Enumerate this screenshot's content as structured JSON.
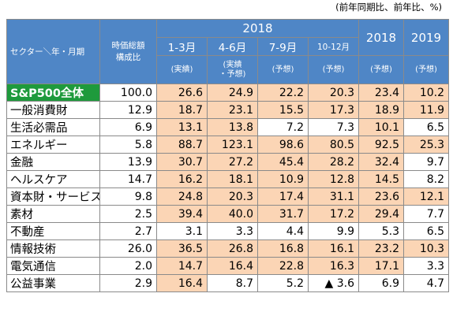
{
  "note": "(前年同期比、前年比、%)",
  "header": {
    "sector_label": "セクター＼年・月期",
    "comp_label_1": "時価総額",
    "comp_label_2": "構成比",
    "year_2018": "2018",
    "quarters": [
      {
        "label": "1-3月",
        "sub": "(実績)"
      },
      {
        "label": "4-6月",
        "sub": "(実績\n・予想)"
      },
      {
        "label": "7-9月",
        "sub": "(予想)"
      },
      {
        "label": "10-12月",
        "sub": "(予想)"
      }
    ],
    "annual": [
      {
        "label": "2018",
        "sub": "(予想)"
      },
      {
        "label": "2019",
        "sub": "(予想)"
      }
    ]
  },
  "rows": [
    {
      "name": "S&P500全体",
      "comp": "100.0",
      "v": [
        "26.6",
        "24.9",
        "22.2",
        "20.3",
        "23.4",
        "10.2"
      ],
      "hl": [
        1,
        1,
        1,
        1,
        1,
        1
      ]
    },
    {
      "name": "一般消費財",
      "comp": "12.9",
      "v": [
        "18.7",
        "23.1",
        "15.5",
        "17.3",
        "18.9",
        "11.9"
      ],
      "hl": [
        1,
        1,
        1,
        1,
        1,
        1
      ]
    },
    {
      "name": "生活必需品",
      "comp": "6.9",
      "v": [
        "13.1",
        "13.8",
        "7.2",
        "7.3",
        "10.1",
        "6.5"
      ],
      "hl": [
        1,
        1,
        0,
        0,
        1,
        0
      ]
    },
    {
      "name": "エネルギー",
      "comp": "5.8",
      "v": [
        "88.7",
        "123.1",
        "98.6",
        "80.5",
        "92.5",
        "25.3"
      ],
      "hl": [
        1,
        1,
        1,
        1,
        1,
        1
      ]
    },
    {
      "name": "金融",
      "comp": "13.9",
      "v": [
        "30.7",
        "27.2",
        "45.4",
        "28.2",
        "32.4",
        "9.7"
      ],
      "hl": [
        1,
        1,
        1,
        1,
        1,
        0
      ]
    },
    {
      "name": "ヘルスケア",
      "comp": "14.7",
      "v": [
        "16.2",
        "18.1",
        "10.9",
        "12.8",
        "14.5",
        "8.2"
      ],
      "hl": [
        1,
        1,
        1,
        1,
        1,
        0
      ]
    },
    {
      "name": "資本財・サービス",
      "comp": "9.8",
      "v": [
        "24.8",
        "20.3",
        "17.4",
        "31.1",
        "23.6",
        "12.1"
      ],
      "hl": [
        1,
        1,
        1,
        1,
        1,
        1
      ]
    },
    {
      "name": "素材",
      "comp": "2.5",
      "v": [
        "39.4",
        "40.0",
        "31.7",
        "17.2",
        "29.4",
        "7.7"
      ],
      "hl": [
        1,
        1,
        1,
        1,
        1,
        0
      ]
    },
    {
      "name": "不動産",
      "comp": "2.7",
      "v": [
        "3.1",
        "3.3",
        "4.4",
        "9.9",
        "5.3",
        "6.5"
      ],
      "hl": [
        0,
        0,
        0,
        0,
        0,
        0
      ]
    },
    {
      "name": "情報技術",
      "comp": "26.0",
      "v": [
        "36.5",
        "26.8",
        "16.8",
        "16.1",
        "23.2",
        "10.3"
      ],
      "hl": [
        1,
        1,
        1,
        1,
        1,
        1
      ]
    },
    {
      "name": "電気通信",
      "comp": "2.0",
      "v": [
        "14.7",
        "16.4",
        "22.8",
        "16.3",
        "17.1",
        "3.3"
      ],
      "hl": [
        1,
        1,
        1,
        1,
        1,
        0
      ]
    },
    {
      "name": "公益事業",
      "comp": "2.9",
      "v": [
        "16.4",
        "8.7",
        "5.2",
        "▲ 3.6",
        "6.9",
        "4.7"
      ],
      "hl": [
        1,
        0,
        0,
        0,
        0,
        0
      ]
    }
  ]
}
